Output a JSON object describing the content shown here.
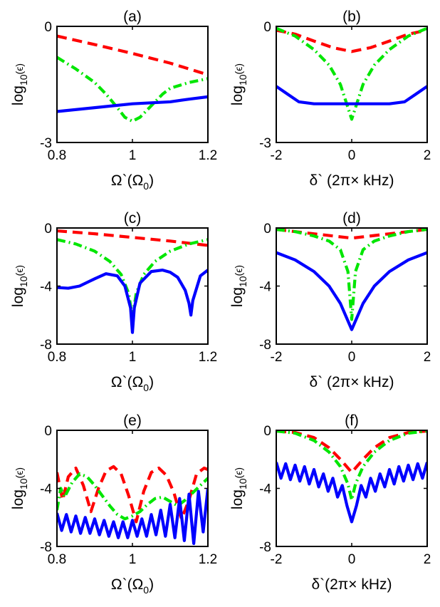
{
  "colors": {
    "red": "#ff0000",
    "green": "#00e600",
    "blue": "#0000ff",
    "axis": "#000000"
  },
  "chart_data": [
    {
      "type": "line",
      "title": "(a)",
      "xlabel": "Ω`(Ω",
      "xlabel_sub": "0",
      "xlabel_end": ")",
      "ylabel": "log",
      "ylabel_sub": "10",
      "ylabel_end": "(ϵ)",
      "xlim": [
        0.8,
        1.2
      ],
      "ylim": [
        -3,
        0
      ],
      "xticks": [
        0.8,
        1,
        1.2
      ],
      "xtick_labels": [
        "0.8",
        "1",
        "1.2"
      ],
      "yticks": [
        -3,
        0
      ],
      "ytick_labels": [
        "-3",
        "0"
      ],
      "series": [
        {
          "name": "red-dashed",
          "color": "#ff0000",
          "style": "dashed",
          "x": [
            0.8,
            0.9,
            1.0,
            1.1,
            1.2
          ],
          "y": [
            -0.25,
            -0.47,
            -0.7,
            -0.95,
            -1.25
          ]
        },
        {
          "name": "green-dashdot",
          "color": "#00e600",
          "style": "dashdot",
          "x": [
            0.8,
            0.85,
            0.9,
            0.93,
            0.96,
            0.98,
            1.0,
            1.02,
            1.05,
            1.08,
            1.1,
            1.15,
            1.2
          ],
          "y": [
            -0.8,
            -1.1,
            -1.45,
            -1.75,
            -2.1,
            -2.35,
            -2.45,
            -2.35,
            -2.05,
            -1.75,
            -1.6,
            -1.45,
            -1.35
          ]
        },
        {
          "name": "blue-solid",
          "color": "#0000ff",
          "style": "solid",
          "x": [
            0.8,
            0.9,
            1.0,
            1.1,
            1.15,
            1.2
          ],
          "y": [
            -2.2,
            -2.1,
            -2.0,
            -1.95,
            -1.88,
            -1.82
          ]
        }
      ]
    },
    {
      "type": "line",
      "title": "(b)",
      "xlabel": "δ` (2π× kHz)",
      "xlabel_sub": "",
      "xlabel_end": "",
      "ylabel": "log",
      "ylabel_sub": "10",
      "ylabel_end": "(ϵ)",
      "xlim": [
        -2,
        2
      ],
      "ylim": [
        -3,
        0
      ],
      "xticks": [
        -2,
        0,
        2
      ],
      "xtick_labels": [
        "-2",
        "0",
        "2"
      ],
      "yticks": [
        -3,
        0
      ],
      "ytick_labels": [
        "-3",
        "0"
      ],
      "series": [
        {
          "name": "red-dashed",
          "color": "#ff0000",
          "style": "dashed",
          "x": [
            -2,
            -1.5,
            -1,
            -0.5,
            0,
            0.5,
            1,
            1.5,
            2
          ],
          "y": [
            -0.1,
            -0.2,
            -0.38,
            -0.55,
            -0.65,
            -0.55,
            -0.38,
            -0.2,
            -0.1
          ]
        },
        {
          "name": "green-dashdot",
          "color": "#00e600",
          "style": "dashdot",
          "x": [
            -2,
            -1.5,
            -1,
            -0.6,
            -0.3,
            -0.1,
            0,
            0.1,
            0.3,
            0.6,
            1,
            1.5,
            2
          ],
          "y": [
            -0.05,
            -0.25,
            -0.6,
            -1.0,
            -1.5,
            -2.1,
            -2.4,
            -2.1,
            -1.5,
            -1.0,
            -0.6,
            -0.25,
            -0.05
          ]
        },
        {
          "name": "blue-solid",
          "color": "#0000ff",
          "style": "solid",
          "x": [
            -2,
            -1.7,
            -1.4,
            -1.0,
            -0.5,
            0,
            0.5,
            1.0,
            1.4,
            1.7,
            2
          ],
          "y": [
            -1.55,
            -1.75,
            -1.95,
            -2.0,
            -2.0,
            -2.0,
            -2.0,
            -2.0,
            -1.95,
            -1.75,
            -1.55
          ]
        }
      ]
    },
    {
      "type": "line",
      "title": "(c)",
      "xlabel": "Ω`(Ω",
      "xlabel_sub": "0",
      "xlabel_end": ")",
      "ylabel": "log",
      "ylabel_sub": "10",
      "ylabel_end": "(ϵ)",
      "xlim": [
        0.8,
        1.2
      ],
      "ylim": [
        -8,
        0
      ],
      "xticks": [
        0.8,
        1,
        1.2
      ],
      "xtick_labels": [
        "0.8",
        "1",
        "1.2"
      ],
      "yticks": [
        -8,
        -4,
        0
      ],
      "ytick_labels": [
        "-8",
        "-4",
        "0"
      ],
      "series": [
        {
          "name": "red-dashed",
          "color": "#ff0000",
          "style": "dashed",
          "x": [
            0.8,
            0.9,
            1.0,
            1.1,
            1.2
          ],
          "y": [
            -0.2,
            -0.4,
            -0.65,
            -0.9,
            -1.2
          ]
        },
        {
          "name": "green-dashdot",
          "color": "#00e600",
          "style": "dashdot",
          "x": [
            0.8,
            0.85,
            0.9,
            0.94,
            0.97,
            0.99,
            1.0,
            1.01,
            1.03,
            1.06,
            1.1,
            1.15,
            1.2
          ],
          "y": [
            -0.8,
            -1.1,
            -1.6,
            -2.3,
            -3.2,
            -4.5,
            -6.2,
            -4.5,
            -3.2,
            -2.3,
            -1.6,
            -1.1,
            -0.8
          ]
        },
        {
          "name": "blue-solid",
          "color": "#0000ff",
          "style": "solid",
          "x": [
            0.8,
            0.83,
            0.86,
            0.9,
            0.93,
            0.96,
            0.98,
            0.995,
            1.0,
            1.005,
            1.02,
            1.05,
            1.08,
            1.1,
            1.12,
            1.14,
            1.15,
            1.155,
            1.16,
            1.18,
            1.2
          ],
          "y": [
            -4.1,
            -4.15,
            -4.0,
            -3.5,
            -3.15,
            -3.3,
            -4.0,
            -5.5,
            -7.2,
            -5.5,
            -3.8,
            -3.0,
            -2.9,
            -3.05,
            -3.4,
            -4.3,
            -5.2,
            -6.0,
            -5.0,
            -3.3,
            -2.9
          ]
        }
      ]
    },
    {
      "type": "line",
      "title": "(d)",
      "xlabel": "δ` (2π× kHz)",
      "xlabel_sub": "",
      "xlabel_end": "",
      "ylabel": "log",
      "ylabel_sub": "10",
      "ylabel_end": "(ϵ)",
      "xlim": [
        -2,
        2
      ],
      "ylim": [
        -8,
        0
      ],
      "xticks": [
        -2,
        0,
        2
      ],
      "xtick_labels": [
        "-2",
        "0",
        "2"
      ],
      "yticks": [
        -8,
        -4,
        0
      ],
      "ytick_labels": [
        "-8",
        "-4",
        "0"
      ],
      "series": [
        {
          "name": "red-dashed",
          "color": "#ff0000",
          "style": "dashed",
          "x": [
            -2,
            -1,
            0,
            1,
            2
          ],
          "y": [
            -0.1,
            -0.4,
            -0.7,
            -0.4,
            -0.1
          ]
        },
        {
          "name": "green-dashdot",
          "color": "#00e600",
          "style": "dashdot",
          "x": [
            -2,
            -1.5,
            -1,
            -0.6,
            -0.3,
            -0.1,
            0,
            0.1,
            0.3,
            0.6,
            1,
            1.5,
            2
          ],
          "y": [
            -0.1,
            -0.25,
            -0.55,
            -0.9,
            -1.5,
            -3.0,
            -6.3,
            -3.0,
            -1.5,
            -0.9,
            -0.55,
            -0.25,
            -0.1
          ]
        },
        {
          "name": "blue-solid",
          "color": "#0000ff",
          "style": "solid",
          "x": [
            -2,
            -1.5,
            -1,
            -0.6,
            -0.3,
            -0.1,
            0,
            0.1,
            0.3,
            0.6,
            1,
            1.5,
            2
          ],
          "y": [
            -1.7,
            -2.2,
            -3.0,
            -4.0,
            -5.2,
            -6.4,
            -7.0,
            -6.4,
            -5.2,
            -4.0,
            -3.0,
            -2.2,
            -1.7
          ]
        }
      ]
    },
    {
      "type": "line",
      "title": "(e)",
      "xlabel": "Ω`(Ω",
      "xlabel_sub": "0",
      "xlabel_end": ")",
      "ylabel": "log",
      "ylabel_sub": "10",
      "ylabel_end": "(ϵ)",
      "xlim": [
        0.8,
        1.2
      ],
      "ylim": [
        -8,
        0
      ],
      "xticks": [
        0.8,
        1,
        1.2
      ],
      "xtick_labels": [
        "0.8",
        "1",
        "1.2"
      ],
      "yticks": [
        -8,
        -4,
        0
      ],
      "ytick_labels": [
        "-8",
        "-4",
        "0"
      ],
      "series": [
        {
          "name": "red-dashed",
          "color": "#ff0000",
          "style": "dashed",
          "x": [
            0.8,
            0.815,
            0.83,
            0.85,
            0.87,
            0.89,
            0.91,
            0.93,
            0.95,
            0.97,
            0.99,
            1.01,
            1.03,
            1.05,
            1.07,
            1.09,
            1.11,
            1.13,
            1.15,
            1.17,
            1.19,
            1.2
          ],
          "y": [
            -2.9,
            -4.8,
            -3.2,
            -2.6,
            -3.8,
            -5.6,
            -4.0,
            -2.8,
            -2.5,
            -3.0,
            -4.5,
            -6.3,
            -4.2,
            -2.9,
            -2.6,
            -3.1,
            -4.3,
            -6.1,
            -4.8,
            -3.0,
            -2.6,
            -2.7
          ]
        },
        {
          "name": "green-dashdot",
          "color": "#00e600",
          "style": "dashdot",
          "x": [
            0.8,
            0.81,
            0.82,
            0.84,
            0.86,
            0.88,
            0.9,
            0.92,
            0.94,
            0.96,
            0.98,
            1.0,
            1.02,
            1.04,
            1.06,
            1.08,
            1.1,
            1.12,
            1.14,
            1.16,
            1.18,
            1.2
          ],
          "y": [
            -5.5,
            -4.0,
            -4.6,
            -3.6,
            -3.0,
            -3.2,
            -3.8,
            -4.5,
            -5.2,
            -5.8,
            -6.1,
            -5.9,
            -5.6,
            -5.1,
            -4.7,
            -4.6,
            -4.9,
            -5.2,
            -4.8,
            -4.3,
            -3.8,
            -3.3
          ]
        },
        {
          "name": "blue-solid",
          "color": "#0000ff",
          "style": "solid",
          "x": [
            0.8,
            0.8125,
            0.825,
            0.8375,
            0.85,
            0.8625,
            0.875,
            0.8875,
            0.9,
            0.9125,
            0.925,
            0.9375,
            0.95,
            0.9625,
            0.975,
            0.9875,
            1.0,
            1.0125,
            1.025,
            1.0375,
            1.05,
            1.0625,
            1.075,
            1.0875,
            1.1,
            1.1125,
            1.125,
            1.1375,
            1.15,
            1.1625,
            1.175,
            1.1875,
            1.2
          ],
          "y": [
            -5.7,
            -6.9,
            -5.8,
            -7.0,
            -5.9,
            -7.1,
            -6.0,
            -7.1,
            -6.1,
            -7.2,
            -6.2,
            -7.3,
            -6.3,
            -7.4,
            -6.3,
            -7.4,
            -6.2,
            -7.3,
            -6.1,
            -7.3,
            -5.8,
            -7.2,
            -5.5,
            -7.3,
            -5.1,
            -7.4,
            -4.7,
            -7.6,
            -4.4,
            -7.8,
            -4.2,
            -7.0,
            -4.0
          ]
        }
      ]
    },
    {
      "type": "line",
      "title": "(f)",
      "xlabel": "δ`(2π× kHz)",
      "xlabel_sub": "",
      "xlabel_end": "",
      "ylabel": "log",
      "ylabel_sub": "10",
      "ylabel_end": "(ϵ)",
      "xlim": [
        -2,
        2
      ],
      "ylim": [
        -8,
        0
      ],
      "xticks": [
        -2,
        0,
        2
      ],
      "xtick_labels": [
        "-2",
        "0",
        "2"
      ],
      "yticks": [
        -8,
        -4,
        0
      ],
      "ytick_labels": [
        "-8",
        "-4",
        "0"
      ],
      "series": [
        {
          "name": "red-dashed",
          "color": "#ff0000",
          "style": "dashed",
          "x": [
            -2,
            -1.5,
            -1,
            -0.6,
            -0.3,
            0,
            0.3,
            0.6,
            1,
            1.5,
            2
          ],
          "y": [
            -0.05,
            -0.15,
            -0.5,
            -1.2,
            -2.0,
            -2.9,
            -2.0,
            -1.2,
            -0.5,
            -0.15,
            -0.05
          ]
        },
        {
          "name": "green-dashdot",
          "color": "#00e600",
          "style": "dashdot",
          "x": [
            -2,
            -1.5,
            -1,
            -0.6,
            -0.3,
            -0.1,
            0,
            0.1,
            0.3,
            0.6,
            1,
            1.5,
            2
          ],
          "y": [
            -0.05,
            -0.2,
            -0.7,
            -1.5,
            -2.5,
            -3.7,
            -4.8,
            -3.7,
            -2.5,
            -1.5,
            -0.7,
            -0.2,
            -0.05
          ]
        },
        {
          "name": "blue-solid",
          "color": "#0000ff",
          "style": "solid",
          "x": [
            -2,
            -1.875,
            -1.75,
            -1.625,
            -1.5,
            -1.375,
            -1.25,
            -1.125,
            -1.0,
            -0.875,
            -0.75,
            -0.625,
            -0.5,
            -0.375,
            -0.25,
            -0.125,
            0,
            0.125,
            0.25,
            0.375,
            0.5,
            0.625,
            0.75,
            0.875,
            1.0,
            1.125,
            1.25,
            1.375,
            1.5,
            1.625,
            1.75,
            1.875,
            2
          ],
          "y": [
            -2.2,
            -3.3,
            -2.3,
            -3.4,
            -2.4,
            -3.5,
            -2.5,
            -3.7,
            -2.7,
            -3.9,
            -3.0,
            -4.2,
            -3.3,
            -4.6,
            -3.8,
            -5.2,
            -6.3,
            -5.2,
            -3.8,
            -4.6,
            -3.3,
            -4.2,
            -3.0,
            -3.9,
            -2.7,
            -3.7,
            -2.5,
            -3.5,
            -2.4,
            -3.4,
            -2.3,
            -3.3,
            -2.2
          ]
        }
      ]
    }
  ]
}
